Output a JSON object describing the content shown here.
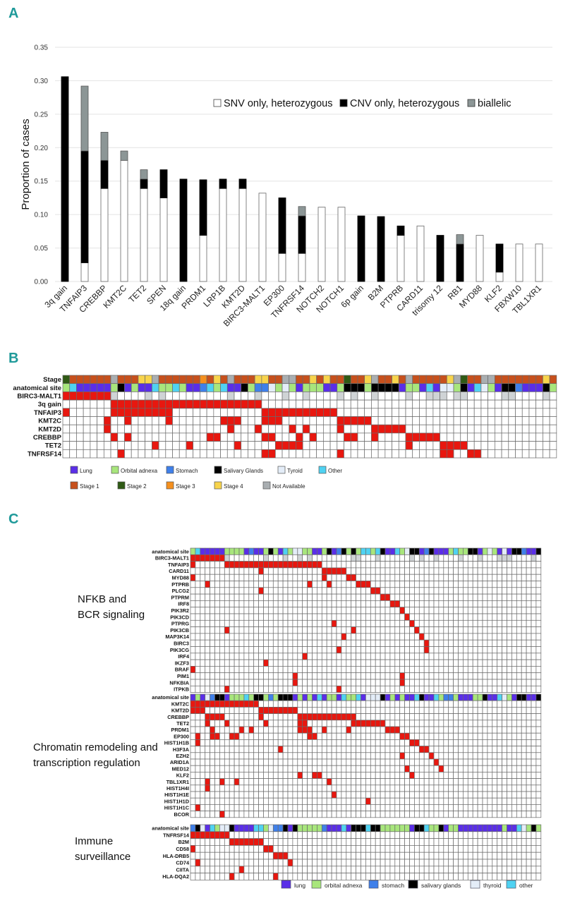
{
  "panels": {
    "a": "A",
    "b": "B",
    "c": "C"
  },
  "colors": {
    "mutated": "#e8170f",
    "empty": "#ffffff",
    "grid": "#555555",
    "site": {
      "L": "#5a2ee8",
      "O": "#a8e67c",
      "S": "#3f80ea",
      "G": "#000000",
      "T": "#e4edf8",
      "X": "#4fd2f2"
    },
    "stage": {
      "1": "#c7501c",
      "2": "#2f5a14",
      "3": "#f5901e",
      "4": "#f8d44c",
      "N": "#a9aeb1"
    },
    "snv": "#ffffff",
    "cnv": "#000000",
    "biallelic": "#8c9696"
  },
  "chart_data": {
    "type": "bar",
    "stacked": true,
    "title": "",
    "xlabel": "",
    "ylabel": "Proportion of cases",
    "ylim": [
      0,
      0.35
    ],
    "yticks": [
      "0.00",
      "0.05",
      "0.10",
      "0.15",
      "0.20",
      "0.25",
      "0.30",
      "0.35"
    ],
    "grid": true,
    "legend_position": "top-right",
    "categories": [
      "3q gain",
      "TNFAIP3",
      "CREBBP",
      "KMT2C",
      "TET2",
      "SPEN",
      "18q gain",
      "PRDM1",
      "LRP1B",
      "KMT2D",
      "BIRC3-MALT1",
      "EP300",
      "TNFRSF14",
      "NOTCH2",
      "NOTCH1",
      "6p gain",
      "B2M",
      "PTPRB",
      "CARD11",
      "trisomy 12",
      "RB1",
      "MYD88",
      "KLF2",
      "FBXW10",
      "TBL1XR1"
    ],
    "series": [
      {
        "name": "SNV only, heterozygous",
        "key": "snv",
        "values": [
          0,
          0.028,
          0.139,
          0.181,
          0.139,
          0.125,
          0,
          0.069,
          0.139,
          0.139,
          0.132,
          0.042,
          0.042,
          0.111,
          0.111,
          0,
          0,
          0.069,
          0.083,
          0,
          0,
          0.069,
          0.014,
          0.056,
          0.056
        ]
      },
      {
        "name": "CNV only, heterozygous",
        "key": "cnv",
        "values": [
          0.306,
          0.167,
          0.042,
          0,
          0.014,
          0.042,
          0.153,
          0.083,
          0.014,
          0.014,
          0,
          0.083,
          0.056,
          0,
          0,
          0.098,
          0.097,
          0.014,
          0,
          0.069,
          0.056,
          0,
          0.042,
          0,
          0
        ]
      },
      {
        "name": "biallelic",
        "key": "biallelic",
        "values": [
          0,
          0.097,
          0.042,
          0.014,
          0.014,
          0,
          0,
          0,
          0,
          0,
          0,
          0,
          0.014,
          0,
          0,
          0,
          0,
          0,
          0,
          0,
          0.014,
          0,
          0,
          0,
          0
        ]
      }
    ]
  },
  "panel_b": {
    "stage_label": "Stage",
    "site_label": "anatomical site",
    "stage": "2111111N1114 4N1111113141N1114411NN11414112114N1141N111114N211NN111111141",
    "site": "OXLLLLLOGLOLLXOOXOLLSXOXLLGOSSTOTOLOOOLLOGGGOGGGGLOOLXLTTOGLXTOLGGSLLLGO",
    "genes": [
      {
        "name": "BIRC3-MALT1",
        "mut": [
          0,
          1,
          2,
          3,
          4,
          5,
          6
        ],
        "na": [
          7,
          12,
          14,
          24,
          28,
          32,
          35,
          40,
          42,
          45,
          50,
          53,
          54,
          55,
          57,
          58,
          64,
          65,
          70
        ]
      },
      {
        "name": "3q gain",
        "mut": [
          7,
          8,
          9,
          10,
          11,
          12,
          13,
          14,
          15,
          16,
          17,
          18,
          19,
          20,
          21,
          22,
          23,
          24,
          25,
          26,
          27,
          28
        ]
      },
      {
        "name": "TNFAIP3",
        "mut": [
          0,
          7,
          8,
          9,
          10,
          11,
          12,
          13,
          14,
          15,
          29,
          30,
          31,
          32,
          33,
          34,
          35,
          36,
          37,
          38,
          39
        ]
      },
      {
        "name": "KMT2C",
        "mut": [
          6,
          9,
          15,
          23,
          24,
          25,
          29,
          30,
          31,
          40,
          41,
          42,
          43,
          44
        ]
      },
      {
        "name": "KMT2D",
        "mut": [
          6,
          24,
          28,
          33,
          35,
          40,
          45,
          46,
          47,
          48,
          49
        ]
      },
      {
        "name": "CREBBP",
        "mut": [
          7,
          9,
          21,
          22,
          29,
          30,
          34,
          36,
          41,
          42,
          45,
          50,
          51,
          52,
          53,
          54
        ]
      },
      {
        "name": "TET2",
        "mut": [
          13,
          18,
          25,
          31,
          32,
          33,
          34,
          50,
          55,
          56,
          57,
          58
        ]
      },
      {
        "name": "TNFRSF14",
        "mut": [
          8,
          29,
          30,
          40,
          55,
          56,
          59,
          60
        ]
      }
    ],
    "legend_sites": [
      {
        "code": "L",
        "label": "Lung"
      },
      {
        "code": "O",
        "label": "Orbital adnexa"
      },
      {
        "code": "S",
        "label": "Stomach"
      },
      {
        "code": "G",
        "label": "Salivary Glands"
      },
      {
        "code": "T",
        "label": "Tyroid"
      },
      {
        "code": "X",
        "label": "Other"
      }
    ],
    "legend_stages": [
      {
        "code": "1",
        "label": "Stage 1"
      },
      {
        "code": "2",
        "label": "Stage 2"
      },
      {
        "code": "3",
        "label": "Stage 3"
      },
      {
        "code": "4",
        "label": "Stage 4"
      },
      {
        "code": "N",
        "label": "Not Available"
      }
    ]
  },
  "panel_c": {
    "site_label": "anatomical site",
    "sections": [
      {
        "title_line1": "NFKB and",
        "title_line2": "BCR signaling",
        "site": "OXLLLLLOOOOLSLLOGOLXOTTOOLLOGLSGOGOXXOXGLLXOTGGLSGLLLOXOOGGLOTOLTLGGSLLG",
        "genes": [
          {
            "name": "BIRC3-MALT1",
            "mut": [
              0,
              1,
              2,
              3,
              4,
              5,
              6
            ],
            "na": [
              7,
              15,
              19,
              22,
              24,
              33,
              34,
              38,
              45,
              47,
              50,
              55,
              59,
              63,
              64,
              65,
              70
            ]
          },
          {
            "name": "TNFAIP3",
            "mut": [
              0,
              7,
              8,
              9,
              10,
              11,
              12,
              13,
              14,
              15,
              16,
              17,
              18,
              19,
              20,
              21,
              22,
              23,
              24,
              25,
              26
            ]
          },
          {
            "name": "CARD11",
            "mut": [
              14,
              27,
              28,
              29,
              30,
              31
            ]
          },
          {
            "name": "MYD88",
            "mut": [
              0,
              27,
              32,
              33
            ]
          },
          {
            "name": "PTPRB",
            "mut": [
              3,
              24,
              28,
              34,
              35,
              36
            ]
          },
          {
            "name": "PLCG2",
            "mut": [
              14,
              37,
              38
            ]
          },
          {
            "name": "PTPRM",
            "mut": [
              39,
              40
            ]
          },
          {
            "name": "IRF8",
            "mut": [
              41,
              42
            ]
          },
          {
            "name": "PIK3R2",
            "mut": [
              43
            ]
          },
          {
            "name": "PIK3CD",
            "mut": [
              44
            ]
          },
          {
            "name": "PTPRG",
            "mut": [
              29,
              45
            ]
          },
          {
            "name": "PIK3CB",
            "mut": [
              7,
              33,
              46
            ]
          },
          {
            "name": "MAP3K14",
            "mut": [
              31,
              47
            ]
          },
          {
            "name": "BIRC3",
            "mut": [
              48
            ]
          },
          {
            "name": "PIK3CG",
            "mut": [
              30,
              48
            ]
          },
          {
            "name": "IRF4",
            "mut": [
              23
            ]
          },
          {
            "name": "IKZF3",
            "mut": [
              15
            ]
          },
          {
            "name": "BRAF",
            "mut": [
              0
            ]
          },
          {
            "name": "PIM1",
            "mut": [
              21,
              43
            ]
          },
          {
            "name": "NFKBIA",
            "mut": [
              21,
              43
            ]
          },
          {
            "name": "ITPKB",
            "mut": [
              7,
              30
            ]
          }
        ]
      },
      {
        "title_line1": "Chromatin remodeling and",
        "title_line2": "transcription regulation",
        "site": "LOLTSGGLOOOXOGGOSOGGGLOLOLXLOOLXOOXLTTTGLOLOLLXGLLXOSSOLLLOOGLLXTOLGGLLG",
        "genes": [
          {
            "name": "KMT2C",
            "mut": [
              0,
              1,
              2,
              3,
              4,
              5,
              6,
              7,
              8,
              9,
              10,
              11,
              12,
              13
            ]
          },
          {
            "name": "KMT2D",
            "mut": [
              0,
              1,
              2,
              14,
              15,
              16,
              17,
              18,
              19,
              20,
              21
            ]
          },
          {
            "name": "CREBBP",
            "mut": [
              3,
              4,
              5,
              6,
              14,
              22,
              23,
              24,
              25,
              26,
              27,
              28,
              29,
              30,
              31,
              32,
              33
            ]
          },
          {
            "name": "TET2",
            "mut": [
              3,
              7,
              15,
              22,
              23,
              33,
              34,
              35,
              36,
              37,
              38,
              39
            ]
          },
          {
            "name": "PRDM1",
            "mut": [
              4,
              10,
              12,
              22,
              23,
              24,
              27,
              32,
              40,
              41,
              42
            ]
          },
          {
            "name": "EP300",
            "mut": [
              1,
              4,
              5,
              8,
              9,
              24,
              25,
              43,
              44
            ]
          },
          {
            "name": "HIST1H1B",
            "mut": [
              1,
              45,
              46
            ]
          },
          {
            "name": "H3F3A",
            "mut": [
              18,
              47,
              48
            ]
          },
          {
            "name": "EZH2",
            "mut": [
              43,
              49
            ]
          },
          {
            "name": "ARID1A",
            "mut": [
              50
            ]
          },
          {
            "name": "MED12",
            "mut": [
              44,
              51
            ]
          },
          {
            "name": "KLF2",
            "mut": [
              22,
              25,
              26,
              45
            ]
          },
          {
            "name": "TBL1XR1",
            "mut": [
              3,
              6,
              9,
              28
            ]
          },
          {
            "name": "HIST1H4I",
            "mut": [
              3
            ]
          },
          {
            "name": "HIST1H1E",
            "mut": [
              29
            ]
          },
          {
            "name": "HIST1H1D",
            "mut": [
              36
            ]
          },
          {
            "name": "HIST1H1C",
            "mut": [
              1
            ]
          },
          {
            "name": "BCOR",
            "mut": [
              6
            ]
          }
        ]
      },
      {
        "title_line1": "Immune",
        "title_line2": "surveillance",
        "site": "SGTLXOTTGLLLLXXOTSSGLGOOOOOSLLLXLGGGXGGOOOOOOLGGXOOGLOOLLLLLLLLLOLLXTOGO",
        "genes": [
          {
            "name": "TNFRSF14",
            "mut": [
              0,
              1,
              2,
              3,
              4,
              5,
              6,
              7
            ]
          },
          {
            "name": "B2M",
            "mut": [
              8,
              9,
              10,
              11,
              12,
              13,
              14
            ]
          },
          {
            "name": "CD58",
            "mut": [
              0,
              15,
              16
            ]
          },
          {
            "name": "HLA-DRB5",
            "mut": [
              17,
              18,
              19
            ]
          },
          {
            "name": "CD74",
            "mut": [
              1,
              20
            ]
          },
          {
            "name": "CIITA",
            "mut": [
              10
            ]
          },
          {
            "name": "HLA-DQA2",
            "mut": [
              8,
              17
            ]
          }
        ]
      }
    ],
    "legend_sites": [
      {
        "code": "L",
        "label": "lung"
      },
      {
        "code": "O",
        "label": "orbital adnexa"
      },
      {
        "code": "S",
        "label": "stomach"
      },
      {
        "code": "G",
        "label": "salivary glands"
      },
      {
        "code": "T",
        "label": "thyroid"
      },
      {
        "code": "X",
        "label": "other"
      }
    ]
  }
}
